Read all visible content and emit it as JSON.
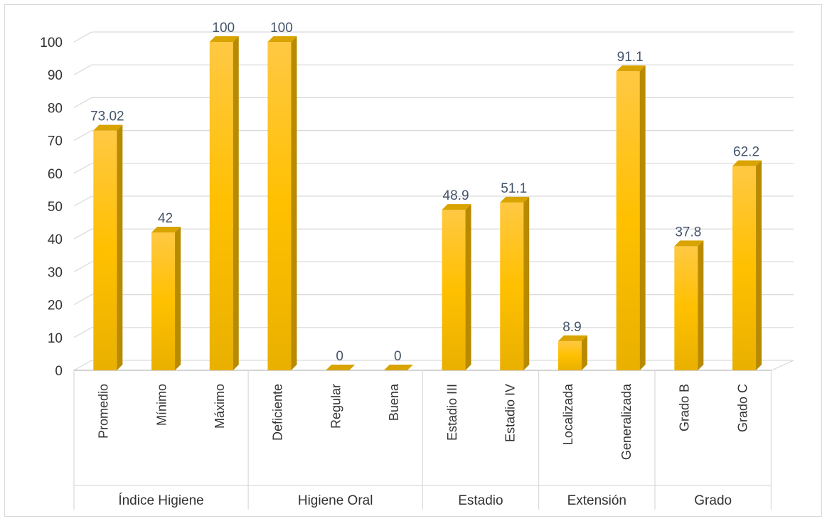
{
  "chart_data": {
    "type": "bar",
    "title": "",
    "xlabel": "",
    "ylabel": "",
    "ylim": [
      0,
      100
    ],
    "yticks": [
      0,
      10,
      20,
      30,
      40,
      50,
      60,
      70,
      80,
      90,
      100
    ],
    "grid": true,
    "legend": "none",
    "bar_color": "#ffc000",
    "label_color": "#44546a",
    "groups": [
      {
        "label": "Índice Higiene",
        "categories": [
          "Promedio",
          "Mínimo",
          "Máximo"
        ],
        "values": [
          73.02,
          42,
          100
        ],
        "value_labels": [
          "73.02",
          "42",
          "100"
        ]
      },
      {
        "label": "Higiene Oral",
        "categories": [
          "Deficiente",
          "Regular",
          "Buena"
        ],
        "values": [
          100,
          0,
          0
        ],
        "value_labels": [
          "100",
          "0",
          "0"
        ]
      },
      {
        "label": "Estadio",
        "categories": [
          "Estadio III",
          "Estadio IV"
        ],
        "values": [
          48.9,
          51.1
        ],
        "value_labels": [
          "48.9",
          "51.1"
        ]
      },
      {
        "label": "Extensión",
        "categories": [
          "Localizada",
          "Generalizada"
        ],
        "values": [
          8.9,
          91.1
        ],
        "value_labels": [
          "8.9",
          "91.1"
        ]
      },
      {
        "label": "Grado",
        "categories": [
          "Grado B",
          "Grado C"
        ],
        "values": [
          37.8,
          62.2
        ],
        "value_labels": [
          "37.8",
          "62.2"
        ]
      }
    ]
  }
}
